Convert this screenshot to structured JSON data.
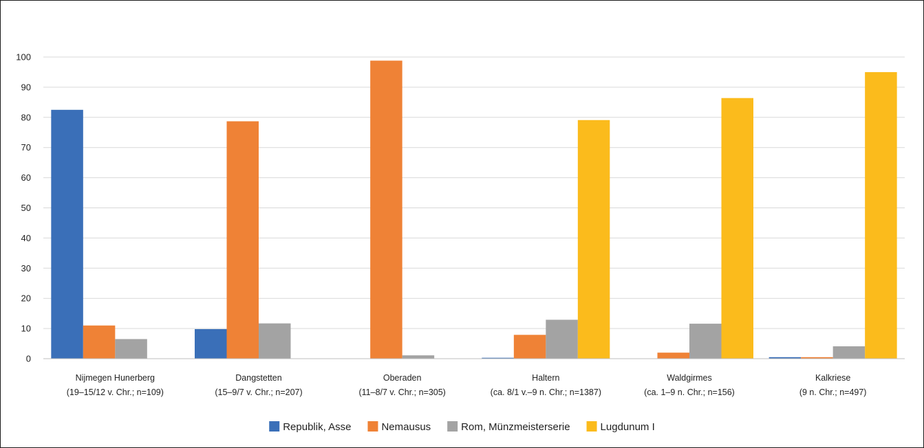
{
  "chart_data": {
    "type": "bar",
    "title": "",
    "xlabel": "",
    "ylabel": "",
    "ylim": [
      0,
      100
    ],
    "yticks": [
      0,
      10,
      20,
      30,
      40,
      50,
      60,
      70,
      80,
      90,
      100
    ],
    "grid": "horizontal",
    "legend_position": "bottom",
    "categories": [
      {
        "name": "Nijmegen Hunerberg",
        "detail": "(19–15/12 v. Chr.; n=109)"
      },
      {
        "name": "Dangstetten",
        "detail": "(15–9/7 v. Chr.; n=207)"
      },
      {
        "name": "Oberaden",
        "detail": "(11–8/7 v. Chr.; n=305)"
      },
      {
        "name": "Haltern",
        "detail": "(ca. 8/1 v.–9 n. Chr.; n=1387)"
      },
      {
        "name": "Waldgirmes",
        "detail": "(ca. 1–9 n. Chr.; n=156)"
      },
      {
        "name": "Kalkriese",
        "detail": "(9 n. Chr.; n=497)"
      }
    ],
    "series": [
      {
        "name": "Republik, Asse",
        "color": "#3a6fb8",
        "values": [
          82.5,
          9.8,
          0,
          0.3,
          0,
          0.5
        ]
      },
      {
        "name": "Nemausus",
        "color": "#ef8236",
        "values": [
          11.0,
          78.7,
          98.8,
          7.9,
          2.0,
          0.5
        ]
      },
      {
        "name": "Rom, Münzmeisterserie",
        "color": "#a3a3a3",
        "values": [
          6.5,
          11.7,
          1.1,
          12.9,
          11.6,
          4.1
        ]
      },
      {
        "name": "Lugdunum I",
        "color": "#fbbb1c",
        "values": [
          0,
          0,
          0,
          79.1,
          86.4,
          95.0
        ]
      }
    ]
  }
}
